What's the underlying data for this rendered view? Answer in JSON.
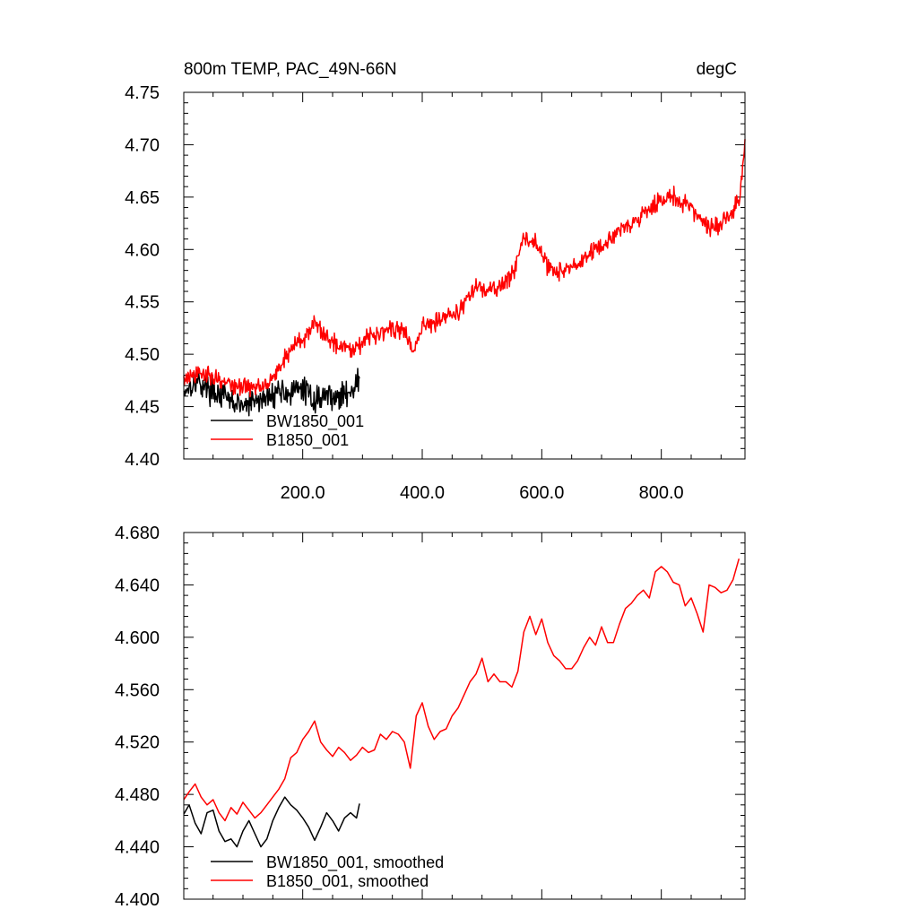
{
  "chart_data": [
    {
      "type": "line",
      "title": "800m TEMP, PAC_49N-66N",
      "units": "degC",
      "xlim": [
        1,
        940
      ],
      "ylim": [
        4.4,
        4.75
      ],
      "x_ticks": [
        200,
        400,
        600,
        800
      ],
      "x_tick_labels": [
        "200.0",
        "400.0",
        "600.0",
        "800.0"
      ],
      "y_ticks": [
        4.4,
        4.45,
        4.5,
        4.55,
        4.6,
        4.65,
        4.7,
        4.75
      ],
      "y_tick_labels": [
        "4.40",
        "4.45",
        "4.50",
        "4.55",
        "4.60",
        "4.65",
        "4.70",
        "4.75"
      ],
      "legend_position": "bottom-left",
      "grid": false,
      "series": [
        {
          "name": "BW1850_001",
          "color": "#000000",
          "noise": 0.018,
          "points": [
            [
              1,
              4.465
            ],
            [
              20,
              4.475
            ],
            [
              40,
              4.468
            ],
            [
              60,
              4.462
            ],
            [
              80,
              4.455
            ],
            [
              100,
              4.45
            ],
            [
              120,
              4.455
            ],
            [
              140,
              4.458
            ],
            [
              160,
              4.466
            ],
            [
              180,
              4.462
            ],
            [
              200,
              4.468
            ],
            [
              220,
              4.456
            ],
            [
              240,
              4.462
            ],
            [
              260,
              4.458
            ],
            [
              280,
              4.466
            ],
            [
              295,
              4.475
            ]
          ]
        },
        {
          "name": "B1850_001",
          "color": "#ff0000",
          "noise": 0.013,
          "points": [
            [
              1,
              4.476
            ],
            [
              40,
              4.482
            ],
            [
              80,
              4.47
            ],
            [
              120,
              4.468
            ],
            [
              150,
              4.477
            ],
            [
              180,
              4.505
            ],
            [
              200,
              4.515
            ],
            [
              220,
              4.528
            ],
            [
              250,
              4.512
            ],
            [
              280,
              4.505
            ],
            [
              310,
              4.516
            ],
            [
              340,
              4.525
            ],
            [
              370,
              4.522
            ],
            [
              385,
              4.502
            ],
            [
              400,
              4.526
            ],
            [
              430,
              4.535
            ],
            [
              460,
              4.54
            ],
            [
              490,
              4.565
            ],
            [
              510,
              4.56
            ],
            [
              530,
              4.563
            ],
            [
              550,
              4.575
            ],
            [
              570,
              4.612
            ],
            [
              590,
              4.605
            ],
            [
              610,
              4.585
            ],
            [
              630,
              4.578
            ],
            [
              660,
              4.585
            ],
            [
              690,
              4.6
            ],
            [
              710,
              4.605
            ],
            [
              730,
              4.62
            ],
            [
              760,
              4.628
            ],
            [
              790,
              4.645
            ],
            [
              820,
              4.65
            ],
            [
              850,
              4.64
            ],
            [
              870,
              4.625
            ],
            [
              890,
              4.62
            ],
            [
              910,
              4.63
            ],
            [
              930,
              4.645
            ],
            [
              940,
              4.7
            ]
          ]
        }
      ]
    },
    {
      "type": "line",
      "title": "",
      "units": "",
      "xlim": [
        1,
        940
      ],
      "ylim": [
        4.4,
        4.68
      ],
      "x_ticks": [
        200,
        400,
        600,
        800
      ],
      "x_tick_labels": [],
      "y_ticks": [
        4.4,
        4.44,
        4.48,
        4.52,
        4.56,
        4.6,
        4.64,
        4.68
      ],
      "y_tick_labels": [
        "4.400",
        "4.440",
        "4.480",
        "4.520",
        "4.560",
        "4.600",
        "4.640",
        "4.680"
      ],
      "legend_position": "bottom-left",
      "grid": false,
      "series": [
        {
          "name": "BW1850_001, smoothed",
          "color": "#000000",
          "points": [
            [
              1,
              4.465
            ],
            [
              10,
              4.472
            ],
            [
              20,
              4.458
            ],
            [
              30,
              4.45
            ],
            [
              40,
              4.466
            ],
            [
              50,
              4.468
            ],
            [
              60,
              4.452
            ],
            [
              70,
              4.444
            ],
            [
              80,
              4.446
            ],
            [
              90,
              4.44
            ],
            [
              100,
              4.452
            ],
            [
              110,
              4.46
            ],
            [
              120,
              4.45
            ],
            [
              130,
              4.44
            ],
            [
              140,
              4.446
            ],
            [
              150,
              4.46
            ],
            [
              160,
              4.47
            ],
            [
              170,
              4.478
            ],
            [
              180,
              4.472
            ],
            [
              190,
              4.468
            ],
            [
              200,
              4.462
            ],
            [
              210,
              4.455
            ],
            [
              220,
              4.445
            ],
            [
              230,
              4.455
            ],
            [
              240,
              4.466
            ],
            [
              250,
              4.46
            ],
            [
              260,
              4.452
            ],
            [
              270,
              4.462
            ],
            [
              280,
              4.466
            ],
            [
              290,
              4.462
            ],
            [
              295,
              4.473
            ]
          ]
        },
        {
          "name": "B1850_001, smoothed",
          "color": "#ff0000",
          "points": [
            [
              1,
              4.476
            ],
            [
              10,
              4.482
            ],
            [
              20,
              4.488
            ],
            [
              30,
              4.478
            ],
            [
              40,
              4.472
            ],
            [
              50,
              4.476
            ],
            [
              60,
              4.466
            ],
            [
              70,
              4.46
            ],
            [
              80,
              4.47
            ],
            [
              90,
              4.465
            ],
            [
              100,
              4.474
            ],
            [
              110,
              4.468
            ],
            [
              120,
              4.462
            ],
            [
              130,
              4.466
            ],
            [
              140,
              4.472
            ],
            [
              150,
              4.478
            ],
            [
              160,
              4.484
            ],
            [
              170,
              4.492
            ],
            [
              180,
              4.508
            ],
            [
              190,
              4.512
            ],
            [
              200,
              4.522
            ],
            [
              210,
              4.528
            ],
            [
              220,
              4.536
            ],
            [
              230,
              4.52
            ],
            [
              240,
              4.514
            ],
            [
              250,
              4.509
            ],
            [
              260,
              4.516
            ],
            [
              270,
              4.512
            ],
            [
              280,
              4.506
            ],
            [
              290,
              4.51
            ],
            [
              300,
              4.516
            ],
            [
              310,
              4.512
            ],
            [
              320,
              4.514
            ],
            [
              330,
              4.526
            ],
            [
              340,
              4.522
            ],
            [
              350,
              4.528
            ],
            [
              360,
              4.526
            ],
            [
              370,
              4.52
            ],
            [
              380,
              4.5
            ],
            [
              390,
              4.54
            ],
            [
              400,
              4.55
            ],
            [
              410,
              4.532
            ],
            [
              420,
              4.522
            ],
            [
              430,
              4.528
            ],
            [
              440,
              4.53
            ],
            [
              450,
              4.54
            ],
            [
              460,
              4.546
            ],
            [
              470,
              4.556
            ],
            [
              480,
              4.566
            ],
            [
              490,
              4.572
            ],
            [
              500,
              4.584
            ],
            [
              510,
              4.566
            ],
            [
              520,
              4.572
            ],
            [
              530,
              4.566
            ],
            [
              540,
              4.566
            ],
            [
              550,
              4.562
            ],
            [
              560,
              4.574
            ],
            [
              570,
              4.604
            ],
            [
              580,
              4.616
            ],
            [
              590,
              4.602
            ],
            [
              600,
              4.614
            ],
            [
              610,
              4.596
            ],
            [
              620,
              4.586
            ],
            [
              630,
              4.582
            ],
            [
              640,
              4.576
            ],
            [
              650,
              4.576
            ],
            [
              660,
              4.582
            ],
            [
              670,
              4.592
            ],
            [
              680,
              4.6
            ],
            [
              690,
              4.594
            ],
            [
              700,
              4.608
            ],
            [
              710,
              4.596
            ],
            [
              720,
              4.596
            ],
            [
              730,
              4.61
            ],
            [
              740,
              4.622
            ],
            [
              750,
              4.626
            ],
            [
              760,
              4.632
            ],
            [
              770,
              4.636
            ],
            [
              780,
              4.63
            ],
            [
              790,
              4.65
            ],
            [
              800,
              4.654
            ],
            [
              810,
              4.65
            ],
            [
              820,
              4.642
            ],
            [
              830,
              4.64
            ],
            [
              840,
              4.624
            ],
            [
              850,
              4.63
            ],
            [
              860,
              4.618
            ],
            [
              870,
              4.604
            ],
            [
              880,
              4.64
            ],
            [
              890,
              4.638
            ],
            [
              900,
              4.634
            ],
            [
              910,
              4.636
            ],
            [
              920,
              4.644
            ],
            [
              930,
              4.66
            ]
          ]
        }
      ]
    }
  ]
}
